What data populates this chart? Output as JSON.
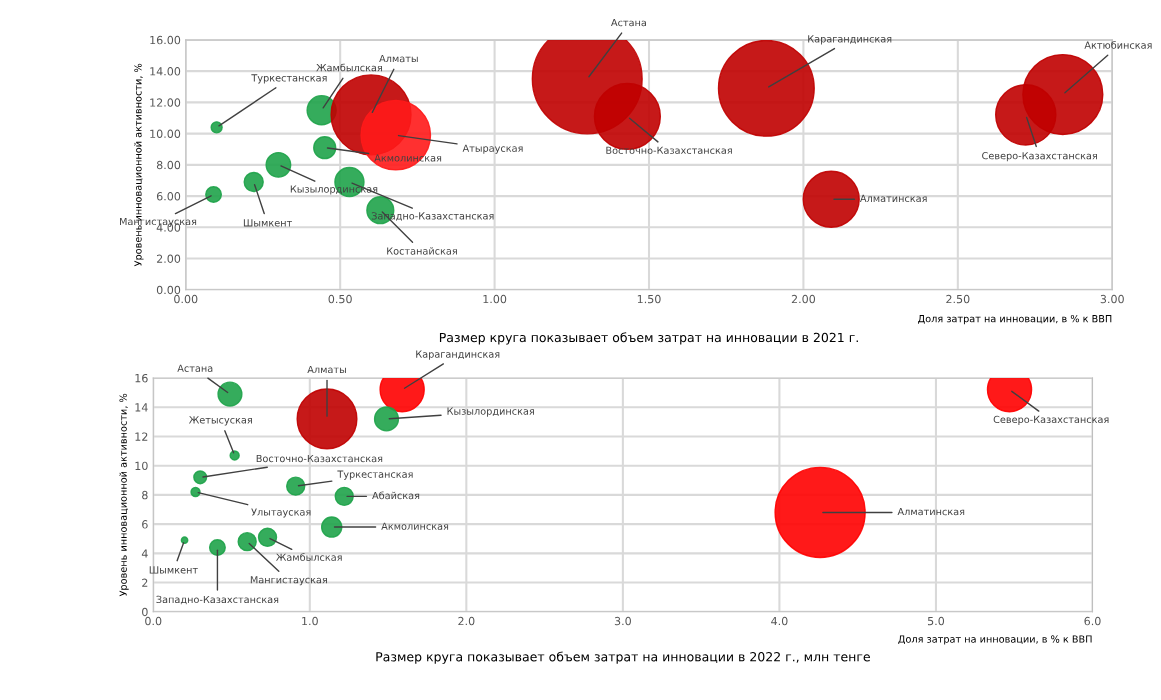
{
  "chart_data": [
    {
      "type": "bubble",
      "ylabel": "Уровень инновационной активности, %",
      "xlabel": "Доля затрат на инновации, в % к ВВП",
      "annotations": [
        "Размер круга показывает объем затрат на инновации в 2021 г."
      ],
      "xlim": [
        0,
        3
      ],
      "xticks": [
        {
          "value": 0,
          "label": "0.00"
        },
        {
          "value": 0.5,
          "label": "0.50"
        },
        {
          "value": 1,
          "label": "1.00"
        },
        {
          "value": 1.5,
          "label": "1.50"
        },
        {
          "value": 2,
          "label": "2.00"
        },
        {
          "value": 2.5,
          "label": "2.50"
        },
        {
          "value": 3,
          "label": "3.00"
        }
      ],
      "ylim": [
        0,
        16
      ],
      "yticks": [
        {
          "value": 0,
          "label": "0.00"
        },
        {
          "value": 2,
          "label": "2.00"
        },
        {
          "value": 4,
          "label": "4.00"
        },
        {
          "value": 6,
          "label": "6.00"
        },
        {
          "value": 8,
          "label": "8.00"
        },
        {
          "value": 10,
          "label": "10.00"
        },
        {
          "value": 12,
          "label": "12.00"
        },
        {
          "value": 14,
          "label": "14.00"
        },
        {
          "value": 16,
          "label": "16.00"
        }
      ],
      "grid": true,
      "legend": false,
      "series": [
        {
          "name": "Туркестанская",
          "color": "#1fa34a",
          "x": [
            0.1
          ],
          "values": [
            10.4
          ],
          "sizes": [
            0.01
          ]
        },
        {
          "name": "Жамбылская",
          "color": "#1fa34a",
          "x": [
            0.44
          ],
          "values": [
            11.5
          ],
          "sizes": [
            0.07
          ]
        },
        {
          "name": "Акмолинская",
          "color": "#1fa34a",
          "x": [
            0.45
          ],
          "values": [
            9.1
          ],
          "sizes": [
            0.04
          ]
        },
        {
          "name": "Кызылординская",
          "color": "#1fa34a",
          "x": [
            0.3
          ],
          "values": [
            8.0
          ],
          "sizes": [
            0.05
          ]
        },
        {
          "name": "Шымкент",
          "color": "#1fa34a",
          "x": [
            0.22
          ],
          "values": [
            6.9
          ],
          "sizes": [
            0.03
          ]
        },
        {
          "name": "Мангистауская",
          "color": "#1fa34a",
          "x": [
            0.09
          ],
          "values": [
            6.1
          ],
          "sizes": [
            0.02
          ]
        },
        {
          "name": "Западно-Казахстанская",
          "color": "#1fa34a",
          "x": [
            0.53
          ],
          "values": [
            6.9
          ],
          "sizes": [
            0.07
          ]
        },
        {
          "name": "Костанайская",
          "color": "#1fa34a",
          "x": [
            0.63
          ],
          "values": [
            5.1
          ],
          "sizes": [
            0.06
          ]
        },
        {
          "name": "Алматы",
          "color": "#c00000",
          "x": [
            0.6
          ],
          "values": [
            11.2
          ],
          "sizes": [
            0.53
          ]
        },
        {
          "name": "Атырауская",
          "color": "#ff1a1a",
          "x": [
            0.68
          ],
          "values": [
            9.9
          ],
          "sizes": [
            0.4
          ]
        },
        {
          "name": "Астана",
          "color": "#c00000",
          "x": [
            1.3
          ],
          "values": [
            13.5
          ],
          "sizes": [
            1
          ]
        },
        {
          "name": "Восточно-Казахстанская",
          "color": "#c00000",
          "x": [
            1.43
          ],
          "values": [
            11.1
          ],
          "sizes": [
            0.36
          ]
        },
        {
          "name": "Карагандинская",
          "color": "#c00000",
          "x": [
            1.88
          ],
          "values": [
            12.9
          ],
          "sizes": [
            0.76
          ]
        },
        {
          "name": "Актюбинская",
          "color": "#c00000",
          "x": [
            2.84
          ],
          "values": [
            12.5
          ],
          "sizes": [
            0.53
          ]
        },
        {
          "name": "Северо-Казахстанская",
          "color": "#c00000",
          "x": [
            2.72
          ],
          "values": [
            11.2
          ],
          "sizes": [
            0.3
          ]
        },
        {
          "name": "Алматинская",
          "color": "#c00000",
          "x": [
            2.09
          ],
          "values": [
            5.8
          ],
          "sizes": [
            0.26
          ]
        }
      ]
    },
    {
      "type": "bubble",
      "ylabel": "Уровень инновационной активности, %",
      "xlabel": "Доля затрат на инновации, в % к ВВП",
      "annotations": [
        "Размер круга показывает объем затрат на инновации в 2022 г., млн тенге"
      ],
      "xlim": [
        0,
        6
      ],
      "xticks": [
        {
          "value": 0,
          "label": "0.0"
        },
        {
          "value": 1,
          "label": "1.0"
        },
        {
          "value": 2,
          "label": "2.0"
        },
        {
          "value": 3,
          "label": "3.0"
        },
        {
          "value": 4,
          "label": "4.0"
        },
        {
          "value": 5,
          "label": "5.0"
        },
        {
          "value": 6,
          "label": "6.0"
        }
      ],
      "ylim": [
        0,
        16
      ],
      "yticks": [
        0,
        2,
        4,
        6,
        8,
        10,
        12,
        14,
        16
      ],
      "grid": true,
      "legend": false,
      "series": [
        {
          "name": "Астана",
          "color": "#1fa34a",
          "x": [
            0.49
          ],
          "values": [
            14.9
          ],
          "sizes": [
            0.07
          ]
        },
        {
          "name": "Алматы",
          "color": "#c00000",
          "x": [
            1.11
          ],
          "values": [
            13.2
          ],
          "sizes": [
            0.44
          ]
        },
        {
          "name": "Карагандинская",
          "color": "#ff0000",
          "x": [
            1.59
          ],
          "values": [
            15.2
          ],
          "sizes": [
            0.24
          ]
        },
        {
          "name": "Кызылординская",
          "color": "#1fa34a",
          "x": [
            1.49
          ],
          "values": [
            13.2
          ],
          "sizes": [
            0.07
          ]
        },
        {
          "name": "Жетысуская",
          "color": "#1fa34a",
          "x": [
            0.52
          ],
          "values": [
            10.7
          ],
          "sizes": [
            0.01
          ]
        },
        {
          "name": "Восточно-Казахстанская",
          "color": "#1fa34a",
          "x": [
            0.3
          ],
          "values": [
            9.2
          ],
          "sizes": [
            0.02
          ]
        },
        {
          "name": "Улытауская",
          "color": "#1fa34a",
          "x": [
            0.27
          ],
          "values": [
            8.2
          ],
          "sizes": [
            0.01
          ]
        },
        {
          "name": "Шымкент",
          "color": "#1fa34a",
          "x": [
            0.2
          ],
          "values": [
            4.9
          ],
          "sizes": [
            0.005
          ]
        },
        {
          "name": "Западно-Казахстанская",
          "color": "#1fa34a",
          "x": [
            0.41
          ],
          "values": [
            4.4
          ],
          "sizes": [
            0.03
          ]
        },
        {
          "name": "Жамбылская",
          "color": "#1fa34a",
          "x": [
            0.73
          ],
          "values": [
            5.1
          ],
          "sizes": [
            0.04
          ]
        },
        {
          "name": "Мангистауская",
          "color": "#1fa34a",
          "x": [
            0.6
          ],
          "values": [
            4.8
          ],
          "sizes": [
            0.04
          ]
        },
        {
          "name": "Туркестанская",
          "color": "#1fa34a",
          "x": [
            0.91
          ],
          "values": [
            8.6
          ],
          "sizes": [
            0.04
          ]
        },
        {
          "name": "Абайская",
          "color": "#1fa34a",
          "x": [
            1.22
          ],
          "values": [
            7.9
          ],
          "sizes": [
            0.04
          ]
        },
        {
          "name": "Акмолинская",
          "color": "#1fa34a",
          "x": [
            1.14
          ],
          "values": [
            5.8
          ],
          "sizes": [
            0.05
          ]
        },
        {
          "name": "Алматинская",
          "color": "#ff0000",
          "x": [
            4.26
          ],
          "values": [
            6.8
          ],
          "sizes": [
            1
          ]
        },
        {
          "name": "Северо-Казахстанская",
          "color": "#ff0000",
          "x": [
            5.47
          ],
          "values": [
            15.2
          ],
          "sizes": [
            0.24
          ]
        }
      ]
    }
  ]
}
